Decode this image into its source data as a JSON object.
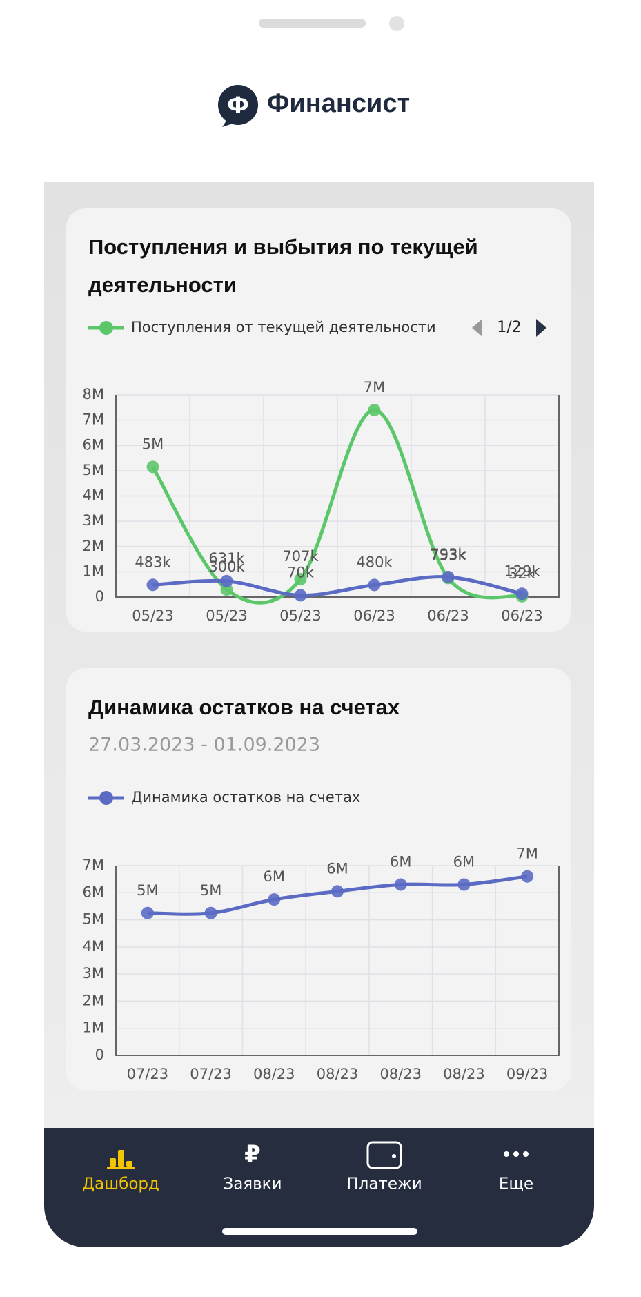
{
  "app": {
    "logo_letter": "Ф",
    "title": "Финансист"
  },
  "chart_data": [
    {
      "type": "line",
      "title": "Поступления и выбытия по текущей деятельности",
      "pager": "1/2",
      "categories": [
        "05/23",
        "05/23",
        "05/23",
        "06/23",
        "06/23",
        "06/23"
      ],
      "series": [
        {
          "name": "Поступления от текущей деятельности",
          "color": "#5cc76a",
          "values": [
            5150000,
            300000,
            707000,
            7400000,
            753000,
            32000
          ],
          "value_labels": [
            "5M",
            "300k",
            "707k",
            "7M",
            "753k",
            "32k"
          ]
        },
        {
          "color": "#5b6bc4",
          "values": [
            483000,
            631000,
            70000,
            480000,
            793000,
            129000
          ],
          "value_labels": [
            "483k",
            "631k",
            "70k",
            "480k",
            "793k",
            "129k"
          ]
        }
      ],
      "ylim": [
        0,
        8000000
      ],
      "yticks": [
        0,
        {
          "value": 1000000,
          "label": "1M"
        },
        {
          "value": 2000000,
          "label": "2M"
        },
        {
          "value": 3000000,
          "label": "3M"
        },
        {
          "value": 4000000,
          "label": "4M"
        },
        {
          "value": 5000000,
          "label": "5M"
        },
        {
          "value": 6000000,
          "label": "6M"
        },
        {
          "value": 7000000,
          "label": "7M"
        },
        {
          "value": 8000000,
          "label": "8M"
        }
      ],
      "grid": true
    },
    {
      "type": "line",
      "title": "Динамика остатков на счетах",
      "subtitle": "27.03.2023 - 01.09.2023",
      "categories": [
        "07/23",
        "07/23",
        "08/23",
        "08/23",
        "08/23",
        "08/23",
        "09/23"
      ],
      "series": [
        {
          "name": "Динамика остатков на счетах",
          "color": "#5b6bc4",
          "values": [
            5250000,
            5250000,
            5750000,
            6050000,
            6300000,
            6300000,
            6600000
          ],
          "value_labels": [
            "5M",
            "5M",
            "6M",
            "6M",
            "6M",
            "6M",
            "7M"
          ]
        }
      ],
      "ylim": [
        0,
        7000000
      ],
      "yticks": [
        0,
        {
          "value": 1000000,
          "label": "1M"
        },
        {
          "value": 2000000,
          "label": "2M"
        },
        {
          "value": 3000000,
          "label": "3M"
        },
        {
          "value": 4000000,
          "label": "4M"
        },
        {
          "value": 5000000,
          "label": "5M"
        },
        {
          "value": 6000000,
          "label": "6M"
        },
        {
          "value": 7000000,
          "label": "7M"
        }
      ],
      "grid": true
    }
  ],
  "nav": {
    "active": 0,
    "items": [
      {
        "label": "Дашборд"
      },
      {
        "icon": "₽",
        "label": "Заявки"
      },
      {
        "label": "Платежи"
      },
      {
        "label": "Еще"
      }
    ]
  }
}
